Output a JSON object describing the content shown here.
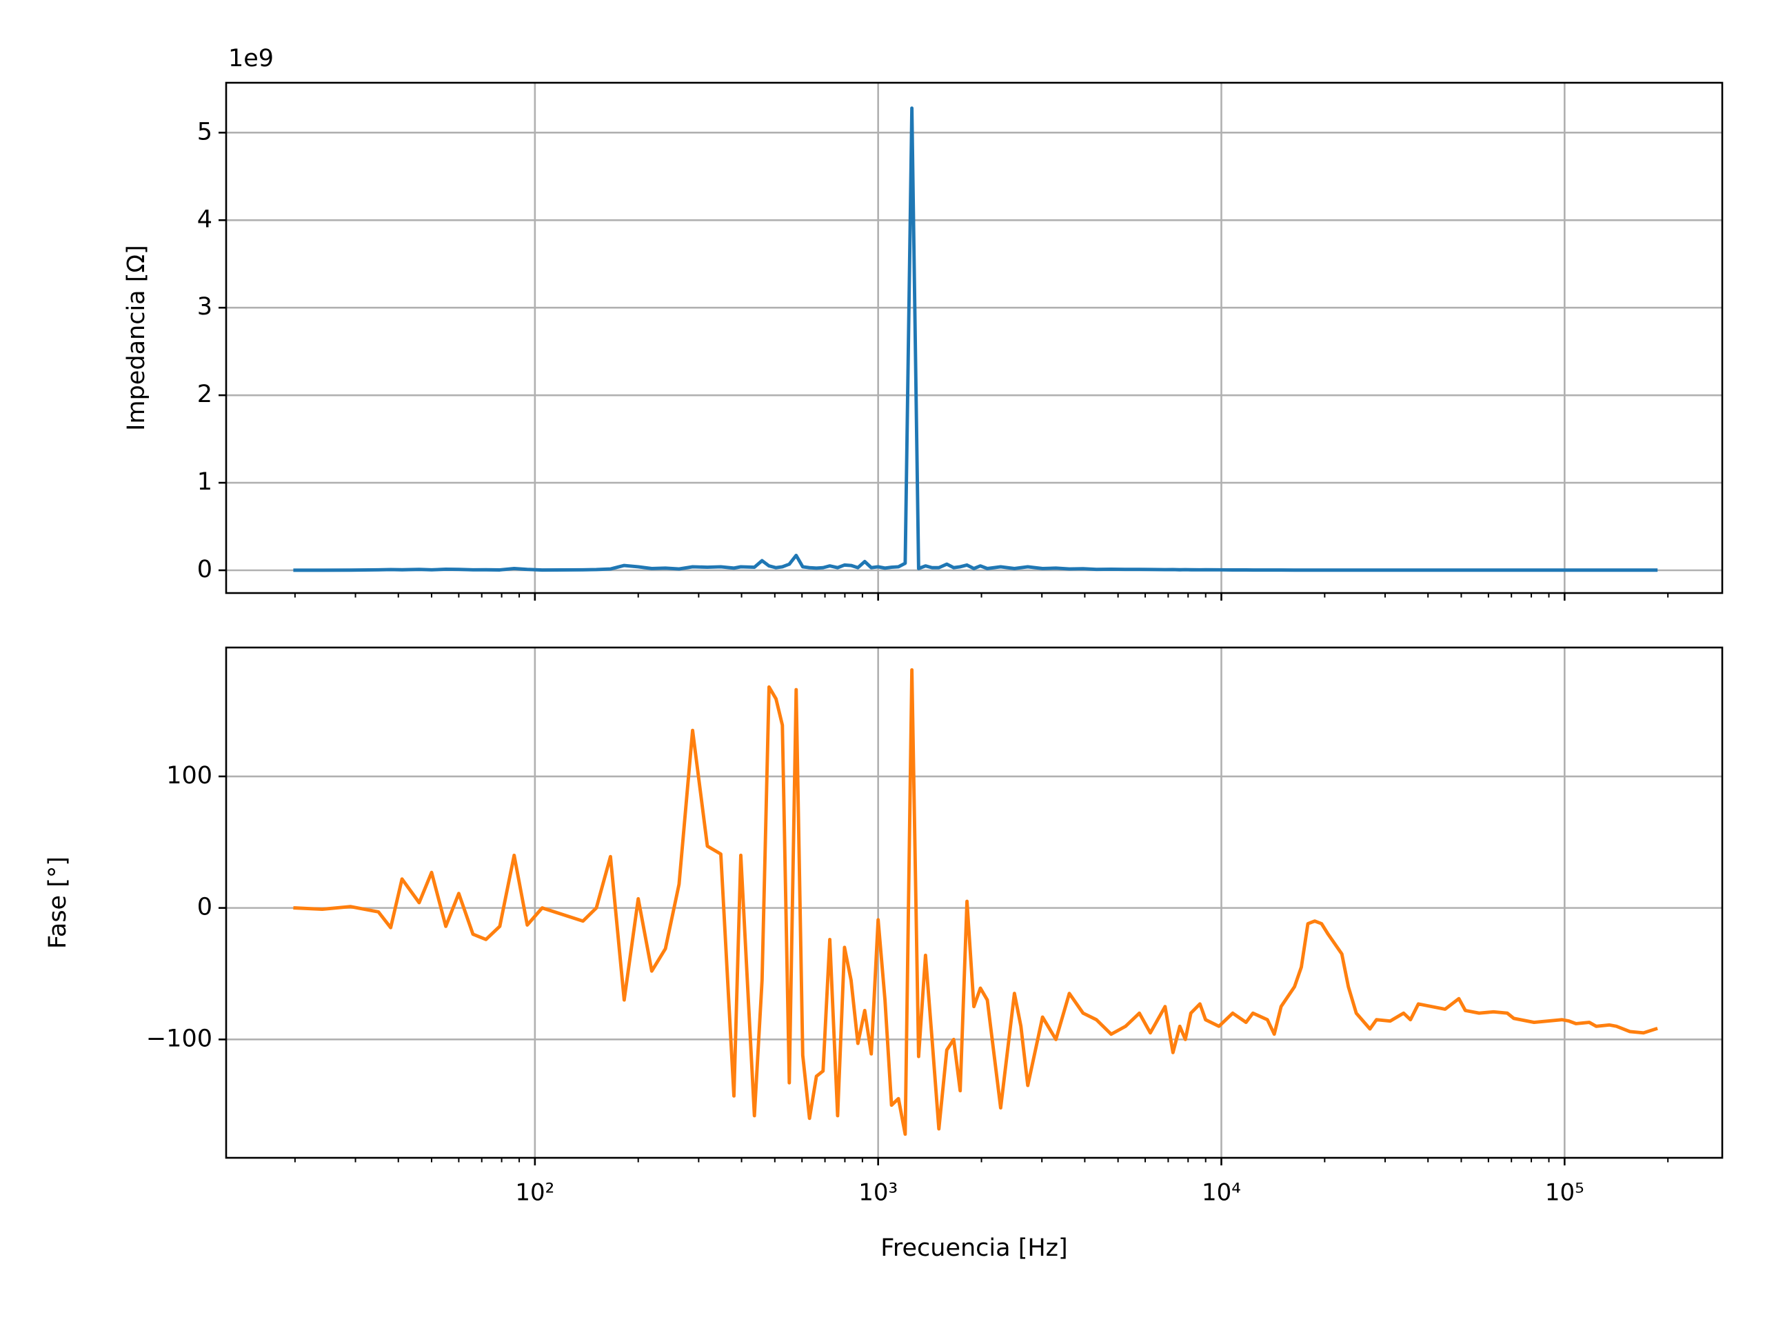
{
  "chart_data": [
    {
      "type": "line",
      "ylabel": "Impedancia [Ω]",
      "offset_text": "1e9",
      "color": "#1f77b4",
      "xscale": "log",
      "grid": true,
      "xlim": [
        12.6,
        288000
      ],
      "xticks": [
        100,
        1000,
        10000,
        100000
      ],
      "xminorticks": [
        20,
        30,
        40,
        50,
        60,
        70,
        80,
        90,
        200,
        300,
        400,
        500,
        600,
        700,
        800,
        900,
        2000,
        3000,
        4000,
        5000,
        6000,
        7000,
        8000,
        9000,
        20000,
        30000,
        40000,
        50000,
        60000,
        70000,
        80000,
        90000,
        200000
      ],
      "ylim": [
        -260000000,
        5570000000
      ],
      "yticks": [
        0,
        {
          "value": 1000000000,
          "label": "1"
        },
        {
          "value": 2000000000,
          "label": "2"
        },
        {
          "value": 3000000000,
          "label": "3"
        },
        {
          "value": 4000000000,
          "label": "4"
        },
        {
          "value": 5000000000,
          "label": "5"
        }
      ],
      "x": [
        20,
        24,
        29,
        35,
        38,
        41,
        46,
        50,
        55,
        60,
        66,
        72,
        79,
        87,
        95,
        105,
        138,
        151,
        166,
        182,
        200,
        219,
        240,
        263,
        288,
        318,
        348,
        380,
        398,
        436,
        459,
        481,
        504,
        526,
        551,
        577,
        603,
        631,
        661,
        691,
        723,
        762,
        798,
        834,
        873,
        914,
        955,
        1000,
        1047,
        1094,
        1146,
        1199,
        1254,
        1312,
        1374,
        1436,
        1503,
        1585,
        1660,
        1734,
        1815,
        1901,
        1986,
        2080,
        2275,
        2495,
        2606,
        2729,
        3013,
        3296,
        3606,
        3954,
        4325,
        4775,
        5260,
        5768,
        6209,
        6855,
        7228,
        7568,
        7852,
        8150,
        8661,
        8995,
        9842,
        10790,
        11800,
        12360,
        13620,
        14260,
        14930,
        16330,
        17100,
        17870,
        18710,
        19590,
        20470,
        22440,
        23450,
        24720,
        27100,
        28310,
        31050,
        33960,
        35560,
        37500,
        44870,
        49200,
        51400,
        56360,
        62100,
        68080,
        71120,
        81470,
        89300,
        98400,
        103000,
        107900,
        118000,
        123600,
        135200,
        141600,
        155000,
        169800,
        184500
      ],
      "values": [
        1000000.0,
        1000000.0,
        2000000.0,
        5000000.0,
        8000000.0,
        6000000.0,
        10000000.0,
        5000000.0,
        12000000.0,
        10000000.0,
        5000000.0,
        6000000.0,
        4000000.0,
        20000000.0,
        10000000.0,
        3000000.0,
        5000000.0,
        8000000.0,
        15000000.0,
        55000000.0,
        40000000.0,
        20000000.0,
        25000000.0,
        15000000.0,
        40000000.0,
        35000000.0,
        40000000.0,
        25000000.0,
        40000000.0,
        35000000.0,
        110000000.0,
        50000000.0,
        30000000.0,
        40000000.0,
        70000000.0,
        170000000.0,
        40000000.0,
        30000000.0,
        25000000.0,
        30000000.0,
        50000000.0,
        30000000.0,
        60000000.0,
        55000000.0,
        30000000.0,
        100000000.0,
        30000000.0,
        40000000.0,
        25000000.0,
        35000000.0,
        40000000.0,
        80000000.0,
        5280000000.0,
        20000000.0,
        50000000.0,
        30000000.0,
        30000000.0,
        70000000.0,
        30000000.0,
        40000000.0,
        60000000.0,
        20000000.0,
        50000000.0,
        20000000.0,
        40000000.0,
        20000000.0,
        30000000.0,
        40000000.0,
        20000000.0,
        25000000.0,
        15000000.0,
        18000000.0,
        10000000.0,
        12000000.0,
        10000000.0,
        10000000.0,
        9000000.0,
        7000000.0,
        8000000.0,
        6000000.0,
        7000000.0,
        6000000.0,
        5000000.0,
        6000000.0,
        5000000.0,
        4000000.0,
        4000000.0,
        3000000.0,
        3000000.0,
        3000000.0,
        3000000.0,
        2000000.0,
        2000000.0,
        2000000.0,
        2000000.0,
        2000000.0,
        2000000.0,
        2000000.0,
        2000000.0,
        2000000.0,
        2000000.0,
        2000000.0,
        2000000.0,
        2000000.0,
        2000000.0,
        2000000.0,
        2000000.0,
        2000000.0,
        2000000.0,
        2000000.0,
        2000000.0,
        2000000.0,
        2000000.0,
        2000000.0,
        2000000.0,
        2000000.0,
        2000000.0,
        2000000.0,
        2000000.0,
        2000000.0,
        2000000.0,
        2000000.0,
        2000000.0,
        2000000.0,
        2000000.0
      ]
    },
    {
      "type": "line",
      "xlabel": "Frecuencia [Hz]",
      "ylabel": "Fase [°]",
      "color": "#ff7f0e",
      "xscale": "log",
      "grid": true,
      "xlim": [
        12.6,
        288000
      ],
      "xticks": [
        {
          "value": 100,
          "label": "10²"
        },
        {
          "value": 1000,
          "label": "10³"
        },
        {
          "value": 10000,
          "label": "10⁴"
        },
        {
          "value": 100000,
          "label": "10⁵"
        }
      ],
      "xminorticks": [
        20,
        30,
        40,
        50,
        60,
        70,
        80,
        90,
        200,
        300,
        400,
        500,
        600,
        700,
        800,
        900,
        2000,
        3000,
        4000,
        5000,
        6000,
        7000,
        8000,
        9000,
        20000,
        30000,
        40000,
        50000,
        60000,
        70000,
        80000,
        90000,
        200000
      ],
      "ylim": [
        -190,
        198
      ],
      "yticks": [
        {
          "value": -100,
          "label": "−100"
        },
        0,
        100
      ],
      "x": [
        20,
        24,
        29,
        35,
        38,
        41,
        46,
        50,
        55,
        60,
        66,
        72,
        79,
        87,
        95,
        105,
        138,
        151,
        166,
        182,
        200,
        219,
        240,
        263,
        288,
        318,
        348,
        380,
        398,
        436,
        459,
        481,
        504,
        526,
        551,
        577,
        603,
        631,
        661,
        691,
        723,
        762,
        798,
        834,
        873,
        914,
        955,
        1000,
        1047,
        1094,
        1146,
        1199,
        1254,
        1312,
        1374,
        1436,
        1503,
        1585,
        1660,
        1734,
        1815,
        1901,
        1986,
        2080,
        2275,
        2495,
        2606,
        2729,
        3013,
        3296,
        3606,
        3954,
        4325,
        4775,
        5260,
        5768,
        6209,
        6855,
        7228,
        7568,
        7852,
        8150,
        8661,
        8995,
        9842,
        10790,
        11800,
        12360,
        13620,
        14260,
        14930,
        16330,
        17100,
        17870,
        18710,
        19590,
        20470,
        22440,
        23450,
        24720,
        27100,
        28310,
        31050,
        33960,
        35560,
        37500,
        44870,
        49200,
        51400,
        56360,
        62100,
        68080,
        71120,
        81470,
        89300,
        98400,
        103000,
        107900,
        118000,
        123600,
        135200,
        141600,
        155000,
        169800,
        184500
      ],
      "values": [
        0,
        -1,
        1,
        -3,
        -15,
        22,
        4,
        27,
        -14,
        11,
        -20,
        -24,
        -14,
        40,
        -13,
        0,
        -10,
        0,
        39,
        -70,
        7,
        -48,
        -31,
        18,
        135,
        47,
        41,
        -143,
        40,
        -158,
        -55,
        168,
        159,
        139,
        -133,
        166,
        -112,
        -160,
        -128,
        -124,
        -24,
        -158,
        -30,
        -55,
        -103,
        -78,
        -111,
        -9,
        -70,
        -150,
        -145,
        -172,
        181,
        -113,
        -36,
        -100,
        -168,
        -108,
        -100,
        -139,
        5,
        -75,
        -61,
        -70,
        -152,
        -65,
        -90,
        -135,
        -83,
        -100,
        -65,
        -80,
        -85,
        -96,
        -90,
        -80,
        -95,
        -75,
        -110,
        -90,
        -100,
        -80,
        -73,
        -85,
        -90,
        -80,
        -87,
        -80,
        -85,
        -96,
        -75,
        -60,
        -45,
        -12,
        -10,
        -12,
        -20,
        -35,
        -60,
        -80,
        -92,
        -85,
        -86,
        -80,
        -85,
        -73,
        -77,
        -69,
        -78,
        -80,
        -79,
        -80,
        -84,
        -87,
        -86,
        -85,
        -86,
        -88,
        -87,
        -90,
        -89,
        -90,
        -94,
        -95,
        -92
      ]
    }
  ]
}
